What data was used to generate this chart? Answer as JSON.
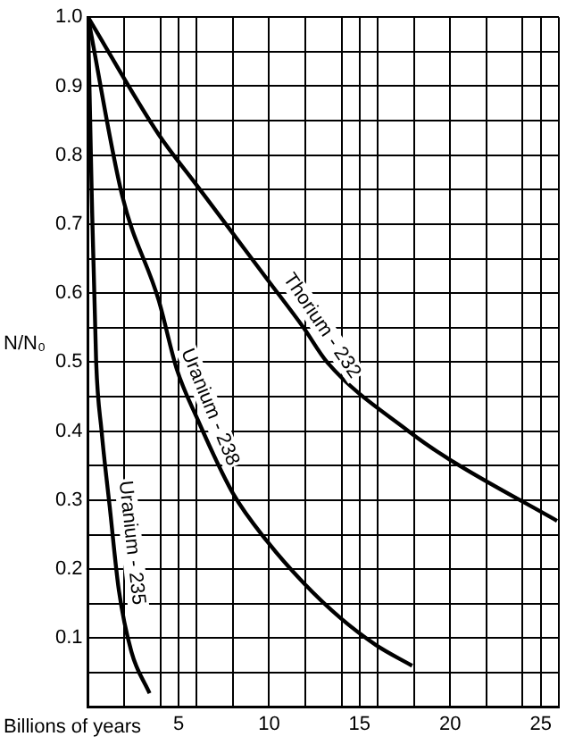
{
  "chart_data": {
    "type": "line",
    "xlabel": "Billions of years",
    "ylabel": "N/N₀",
    "xlim": [
      0,
      26
    ],
    "ylim": [
      0,
      1
    ],
    "xticks": [
      {
        "value": 0,
        "label": null
      },
      {
        "value": 2,
        "label": null
      },
      {
        "value": 4,
        "label": null
      },
      5,
      {
        "value": 6,
        "label": null
      },
      {
        "value": 8,
        "label": null
      },
      10,
      {
        "value": 12,
        "label": null
      },
      {
        "value": 14,
        "label": null
      },
      15,
      {
        "value": 16,
        "label": null
      },
      {
        "value": 18,
        "label": null
      },
      20,
      {
        "value": 22,
        "label": null
      },
      {
        "value": 24,
        "label": null
      },
      25,
      {
        "value": 26,
        "label": null
      }
    ],
    "yticks": [
      {
        "value": 0,
        "label": null
      },
      {
        "value": 0.05,
        "label": null
      },
      0.1,
      {
        "value": 0.15,
        "label": null
      },
      0.2,
      {
        "value": 0.25,
        "label": null
      },
      0.3,
      {
        "value": 0.35,
        "label": null
      },
      0.4,
      {
        "value": 0.45,
        "label": null
      },
      0.5,
      {
        "value": 0.55,
        "label": null
      },
      0.6,
      {
        "value": 0.65,
        "label": null
      },
      0.7,
      {
        "value": 0.75,
        "label": null
      },
      0.8,
      {
        "value": 0.85,
        "label": null
      },
      0.9,
      {
        "value": 0.95,
        "label": null
      },
      {
        "value": 1,
        "label": "1.0"
      }
    ],
    "grid": true,
    "legend": false,
    "marker": "none",
    "line_style": "solid",
    "series": [
      {
        "color": "#000000",
        "x": [
          0,
          3.9,
          5.9,
          7.9,
          9.9,
          11.9,
          13.2,
          17.7,
          19.9,
          25.9
        ],
        "values": [
          1.0,
          0.83,
          0.76,
          0.69,
          0.62,
          0.55,
          0.5,
          0.4,
          0.36,
          0.27
        ]
      },
      {
        "color": "#000000",
        "x": [
          0,
          1.9,
          3.9,
          4.9,
          6,
          8,
          9.9,
          11.9,
          13.9,
          15.9,
          17.9
        ],
        "values": [
          1.0,
          0.74,
          0.59,
          0.49,
          0.42,
          0.31,
          0.24,
          0.18,
          0.13,
          0.09,
          0.06
        ]
      },
      {
        "color": "#000000",
        "x": [
          0,
          0.2,
          0.45,
          0.75,
          1.2,
          1.7,
          2.4,
          3.4
        ],
        "values": [
          1.0,
          0.75,
          0.5,
          0.4,
          0.29,
          0.17,
          0.08,
          0.02
        ]
      }
    ],
    "annotations": [
      "Thorium - 232",
      "Uranium - 238",
      "Uranium - 235"
    ]
  }
}
